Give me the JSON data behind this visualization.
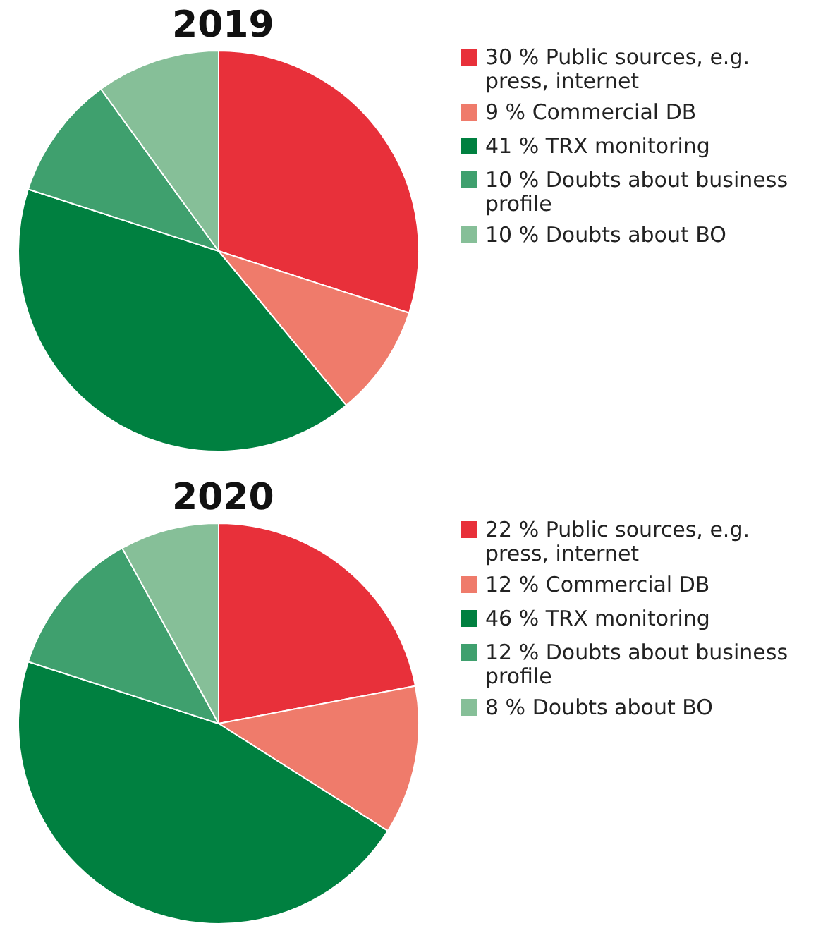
{
  "chart_data": [
    {
      "type": "pie",
      "title": "2019",
      "categories": [
        "Public sources, e.g. press, internet",
        "Commercial DB",
        "TRX monitoring",
        "Doubts about business profile",
        "Doubts about BO"
      ],
      "values": [
        30,
        9,
        41,
        10,
        10
      ],
      "value_labels": [
        "30 %",
        "9 %",
        "41 %",
        "10 %",
        "10 %"
      ],
      "colors": [
        "#e8303a",
        "#ef7b6b",
        "#008040",
        "#3fa06e",
        "#86bf98"
      ],
      "legend": "top right"
    },
    {
      "type": "pie",
      "title": "2020",
      "categories": [
        "Public sources, e.g. press, internet",
        "Commercial DB",
        "TRX monitoring",
        "Doubts about business profile",
        "Doubts about BO"
      ],
      "values": [
        22,
        12,
        46,
        12,
        8
      ],
      "value_labels": [
        "22 %",
        "12 %",
        "46 %",
        "12 %",
        "8 %"
      ],
      "colors": [
        "#e8303a",
        "#ef7b6b",
        "#008040",
        "#3fa06e",
        "#86bf98"
      ],
      "legend": "top right"
    }
  ]
}
